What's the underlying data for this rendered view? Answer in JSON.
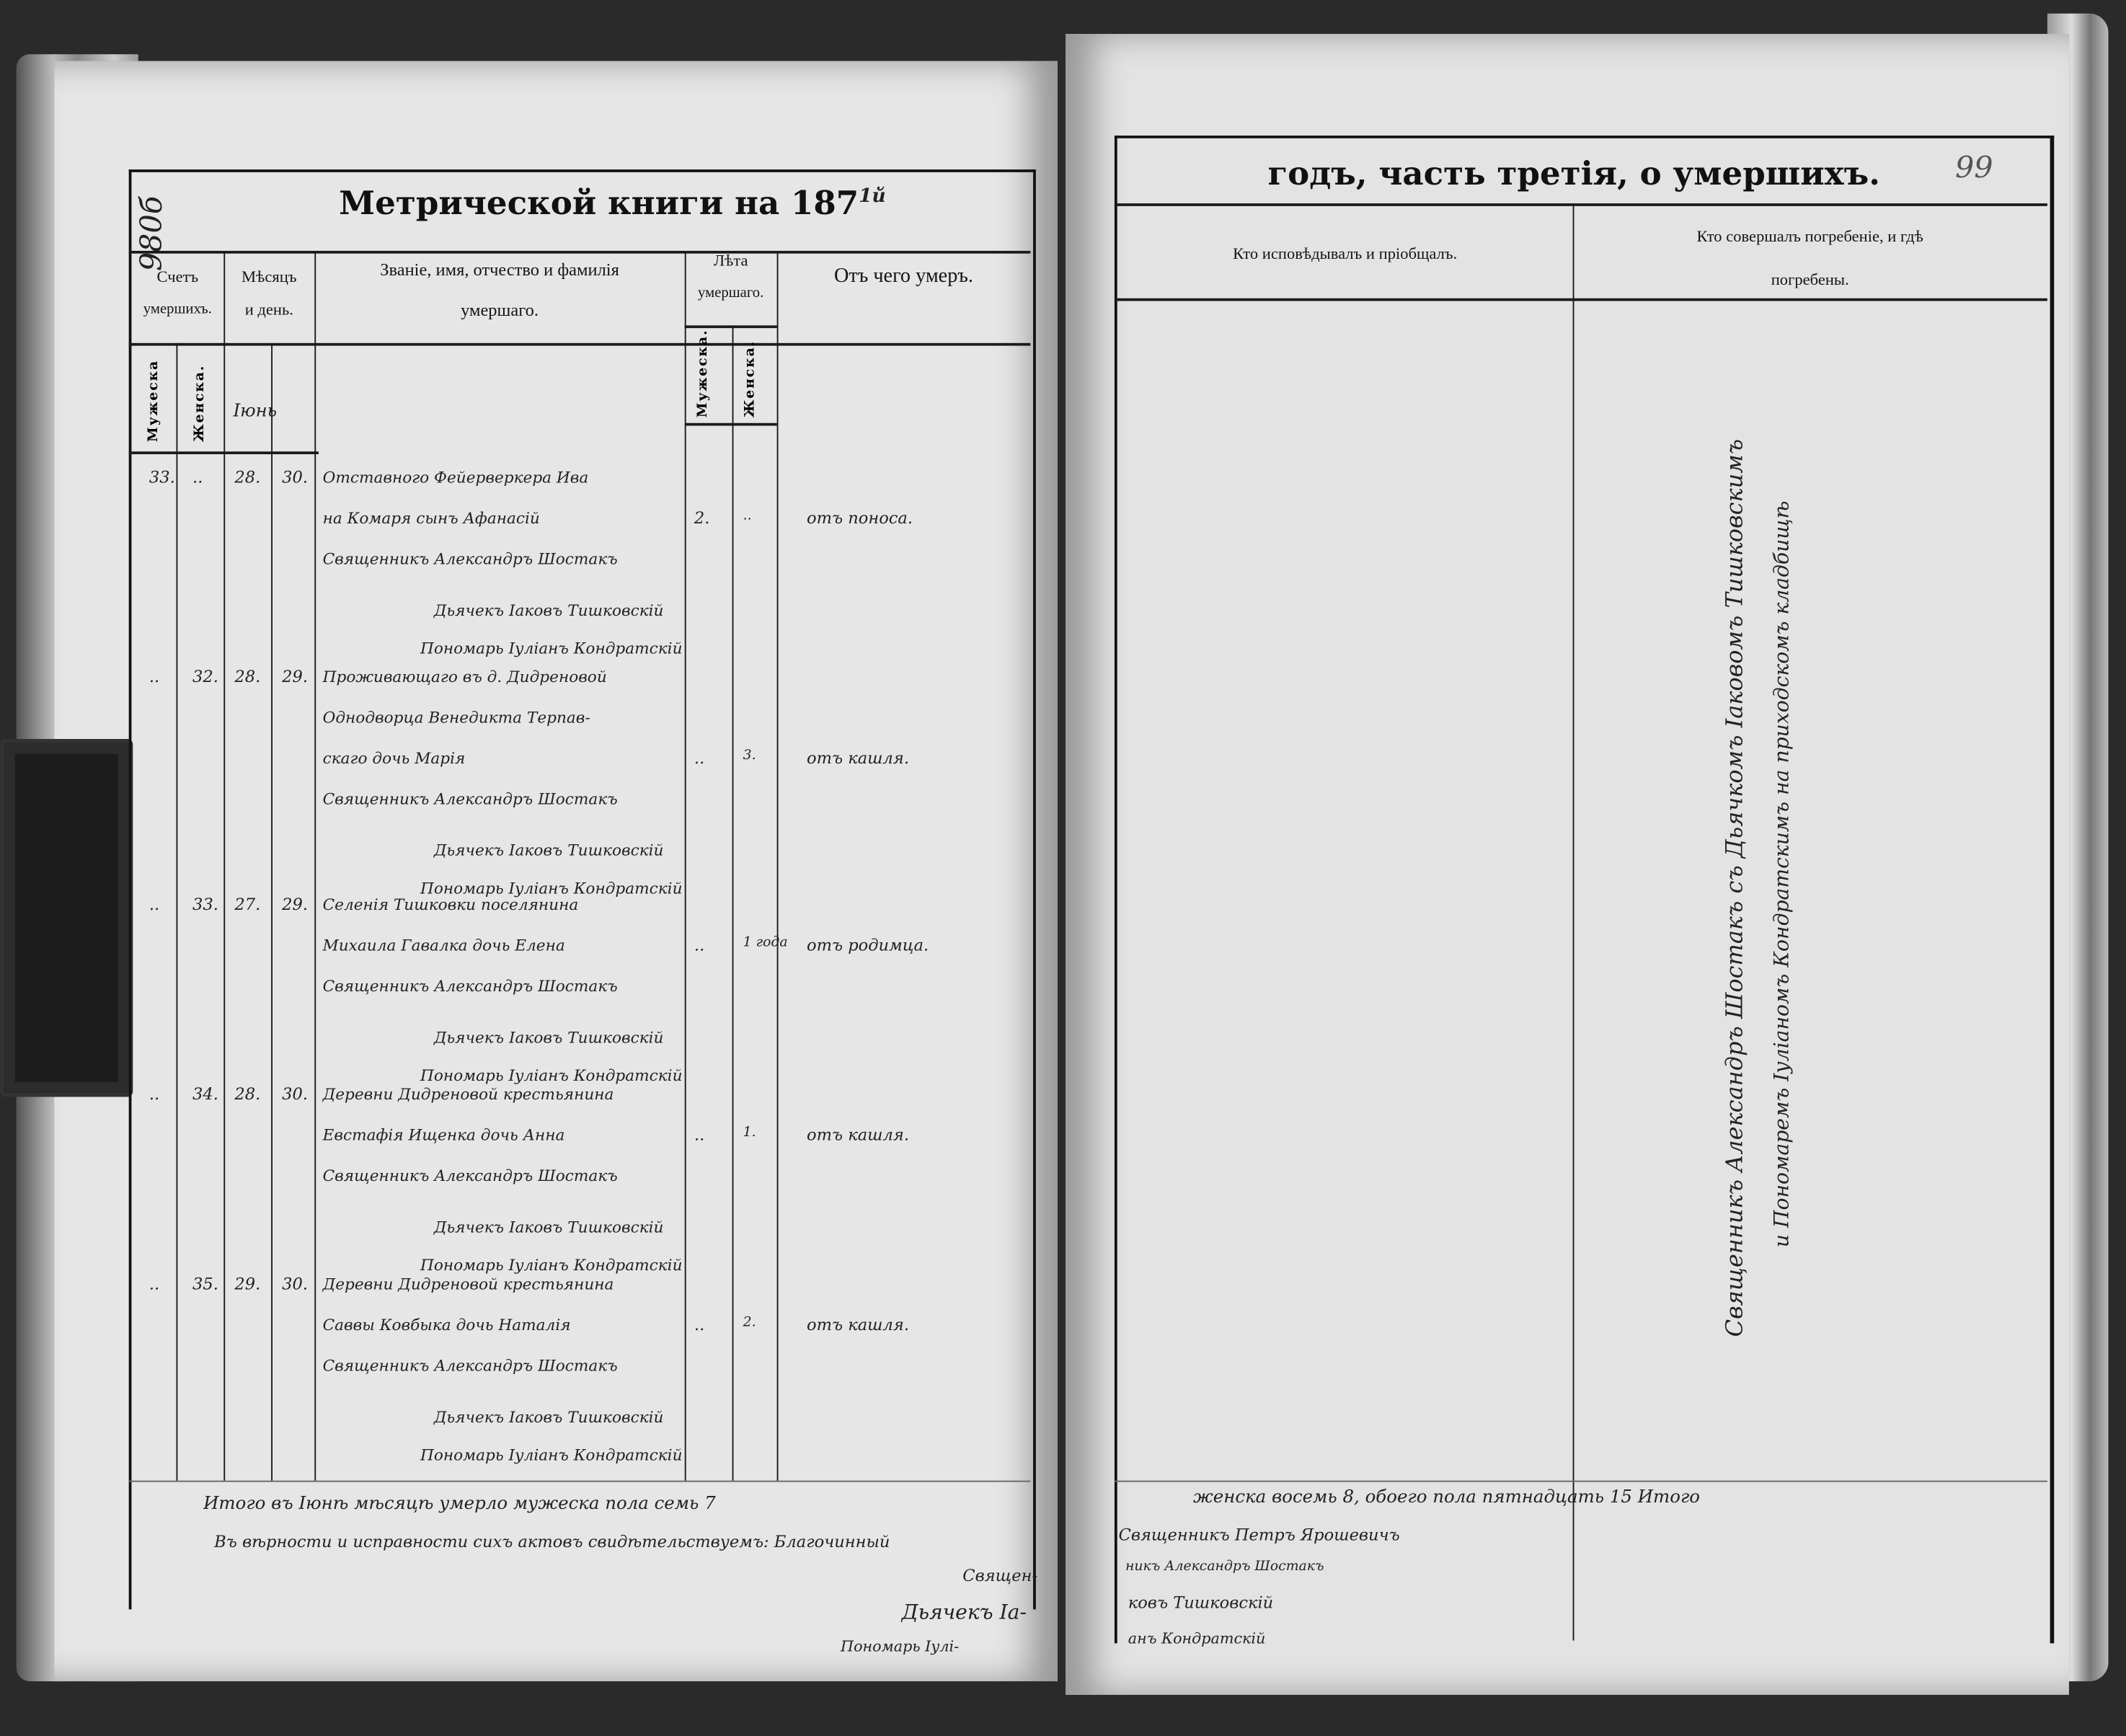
{
  "left_page": {
    "archive_number": "980б",
    "title": "Метрической книги на 187",
    "title_year_suffix": "1й",
    "headers": {
      "count": [
        "Счетъ",
        "умершихъ."
      ],
      "count_male": "Мужеска",
      "count_female": "Женска.",
      "month_day": [
        "Мѣсяцъ",
        "и день."
      ],
      "month_name": "Іюнь",
      "name": [
        "Званіе, имя, отчество и фамилія",
        "умершаго."
      ],
      "age": [
        "Лѣта",
        "умершаго."
      ],
      "age_male": "Мужеска.",
      "age_female": "Женска.",
      "cause": "Отъ чего умеръ."
    },
    "entries": [
      {
        "male_no": "33.",
        "female_no": "..",
        "death": "28.",
        "burial": "30.",
        "name_lines": [
          "Отставного Фейерверкера Ива",
          "на Комаря сынъ Афанасій",
          "Священникъ Александръ Шостакъ"
        ],
        "signatures": [
          "Дьячекъ Іаковъ Тишковскій",
          "Пономарь Іуліанъ Кондратскій"
        ],
        "age_male": "2.",
        "age_female": "..",
        "cause": "отъ поноса."
      },
      {
        "male_no": "..",
        "female_no": "32.",
        "death": "28.",
        "burial": "29.",
        "name_lines": [
          "Проживающаго въ д. Дидреновой",
          "Однодворца Венедикта Терпав-",
          "скаго дочь Марія",
          "Священникъ Александръ Шостакъ"
        ],
        "signatures": [
          "Дьячекъ Іаковъ Тишковскій",
          "Пономарь Іуліанъ Кондратскій"
        ],
        "age_male": "..",
        "age_female": "3.",
        "cause": "отъ кашля."
      },
      {
        "male_no": "..",
        "female_no": "33.",
        "death": "27.",
        "burial": "29.",
        "name_lines": [
          "Селенія Тишковки поселянина",
          "Михаила Гавалка дочь Елена",
          "Священникъ Александръ Шостакъ"
        ],
        "signatures": [
          "Дьячекъ Іаковъ Тишковскій",
          "Пономарь Іуліанъ Кондратскій"
        ],
        "age_male": "..",
        "age_female": "1 года",
        "cause": "отъ родимца."
      },
      {
        "male_no": "..",
        "female_no": "34.",
        "death": "28.",
        "burial": "30.",
        "name_lines": [
          "Деревни Дидреновой крестьянина",
          "Евстафія Ищенка дочь Анна",
          "Священникъ Александръ Шостакъ"
        ],
        "signatures": [
          "Дьячекъ Іаковъ Тишковскій",
          "Пономарь Іуліанъ Кондратскій"
        ],
        "age_male": "..",
        "age_female": "1.",
        "cause": "отъ кашля."
      },
      {
        "male_no": "..",
        "female_no": "35.",
        "death": "29.",
        "burial": "30.",
        "name_lines": [
          "Деревни Дидреновой крестьянина",
          "Саввы Ковбыка дочь Наталія",
          "Священникъ Александръ Шостакъ"
        ],
        "signatures": [
          "Дьячекъ Іаковъ Тишковскій",
          "Пономарь Іуліанъ Кондратскій"
        ],
        "age_male": "..",
        "age_female": "2.",
        "cause": "отъ кашля."
      }
    ],
    "footer_left": [
      "Итого  въ  Іюнѣ  мѣсяцѣ  умерло  мужеска  пола  семь  7",
      "Въ  вѣрности  и  исправности  сихъ  актовъ  свидѣтельствуемъ:  Благочинный",
      "Священ-",
      "Дьячекъ  Іа-",
      "Пономарь  Іулі-"
    ]
  },
  "right_page": {
    "title": "годъ, часть третія, о умершихъ.",
    "page_number": "99",
    "headers": {
      "confessor": "Кто исповѣдывалъ и пріобщалъ.",
      "burial": [
        "Кто совершалъ погребеніе, и гдѣ",
        "погребены."
      ]
    },
    "burial_note": [
      "Священникъ Александръ Шостакъ съ Дьячкомъ Іаковомъ Тишковскимъ",
      "и Пономаремъ Іуліаномъ Кондратскимъ на приходскомъ кладбищѣ"
    ],
    "footer_right": [
      "женска  восемь  8,  обоего  пола  пятнадцать  15  Итого",
      "Священникъ  Петръ  Ярошевичъ",
      "никъ  Александръ  Шостакъ",
      "ковъ  Тишковскій",
      "анъ  Кондратскій"
    ]
  }
}
